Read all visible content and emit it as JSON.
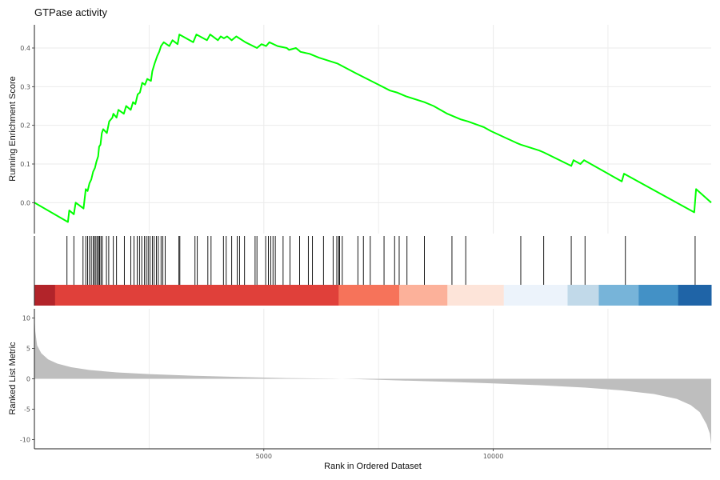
{
  "chart_data": {
    "type": "line",
    "title": "GTPase activity",
    "xlabel": "Rank in Ordered Dataset",
    "x_ticks": [
      5000,
      10000
    ],
    "xlim": [
      0,
      14750
    ],
    "grid": "vertical",
    "panels": {
      "running_score": {
        "ylabel": "Running Enrichment Score",
        "ylim": [
          -0.08,
          0.46
        ],
        "y_ticks": [
          0.0,
          0.1,
          0.2,
          0.3,
          0.4
        ],
        "line_color": "#00ff00",
        "points": [
          [
            0,
            0.0
          ],
          [
            730,
            -0.05
          ],
          [
            760,
            -0.02
          ],
          [
            860,
            -0.03
          ],
          [
            900,
            0.0
          ],
          [
            1070,
            -0.015
          ],
          [
            1120,
            0.035
          ],
          [
            1160,
            0.03
          ],
          [
            1200,
            0.05
          ],
          [
            1240,
            0.06
          ],
          [
            1280,
            0.08
          ],
          [
            1320,
            0.09
          ],
          [
            1350,
            0.105
          ],
          [
            1390,
            0.12
          ],
          [
            1410,
            0.145
          ],
          [
            1440,
            0.15
          ],
          [
            1470,
            0.18
          ],
          [
            1500,
            0.19
          ],
          [
            1580,
            0.18
          ],
          [
            1630,
            0.21
          ],
          [
            1700,
            0.22
          ],
          [
            1720,
            0.23
          ],
          [
            1790,
            0.22
          ],
          [
            1830,
            0.24
          ],
          [
            1950,
            0.23
          ],
          [
            2000,
            0.25
          ],
          [
            2100,
            0.24
          ],
          [
            2150,
            0.26
          ],
          [
            2200,
            0.255
          ],
          [
            2250,
            0.28
          ],
          [
            2300,
            0.285
          ],
          [
            2350,
            0.31
          ],
          [
            2410,
            0.305
          ],
          [
            2460,
            0.32
          ],
          [
            2540,
            0.315
          ],
          [
            2570,
            0.34
          ],
          [
            2620,
            0.36
          ],
          [
            2680,
            0.38
          ],
          [
            2720,
            0.39
          ],
          [
            2760,
            0.405
          ],
          [
            2820,
            0.415
          ],
          [
            2940,
            0.405
          ],
          [
            3010,
            0.42
          ],
          [
            3120,
            0.41
          ],
          [
            3160,
            0.435
          ],
          [
            3460,
            0.415
          ],
          [
            3530,
            0.435
          ],
          [
            3760,
            0.42
          ],
          [
            3830,
            0.435
          ],
          [
            4000,
            0.42
          ],
          [
            4060,
            0.43
          ],
          [
            4130,
            0.425
          ],
          [
            4200,
            0.43
          ],
          [
            4300,
            0.42
          ],
          [
            4400,
            0.43
          ],
          [
            4600,
            0.415
          ],
          [
            4850,
            0.4
          ],
          [
            4950,
            0.41
          ],
          [
            5050,
            0.405
          ],
          [
            5120,
            0.415
          ],
          [
            5300,
            0.405
          ],
          [
            5500,
            0.4
          ],
          [
            5550,
            0.395
          ],
          [
            5700,
            0.4
          ],
          [
            5800,
            0.39
          ],
          [
            6000,
            0.385
          ],
          [
            6200,
            0.375
          ],
          [
            6600,
            0.36
          ],
          [
            7000,
            0.335
          ],
          [
            7500,
            0.305
          ],
          [
            7750,
            0.29
          ],
          [
            7900,
            0.285
          ],
          [
            8100,
            0.275
          ],
          [
            8500,
            0.26
          ],
          [
            8700,
            0.25
          ],
          [
            9000,
            0.23
          ],
          [
            9300,
            0.215
          ],
          [
            9450,
            0.21
          ],
          [
            9800,
            0.195
          ],
          [
            9950,
            0.185
          ],
          [
            10500,
            0.155
          ],
          [
            10600,
            0.15
          ],
          [
            11000,
            0.135
          ],
          [
            11100,
            0.13
          ],
          [
            11700,
            0.095
          ],
          [
            11750,
            0.11
          ],
          [
            11900,
            0.1
          ],
          [
            11980,
            0.11
          ],
          [
            12800,
            0.055
          ],
          [
            12850,
            0.075
          ],
          [
            14380,
            -0.025
          ],
          [
            14420,
            0.035
          ],
          [
            14750,
            0.0
          ]
        ]
      },
      "hits": {
        "positions": [
          710,
          860,
          1060,
          1120,
          1160,
          1200,
          1240,
          1280,
          1310,
          1340,
          1370,
          1400,
          1420,
          1450,
          1480,
          1570,
          1620,
          1720,
          1790,
          1960,
          2100,
          2170,
          2240,
          2290,
          2340,
          2400,
          2440,
          2480,
          2520,
          2570,
          2610,
          2660,
          2700,
          2760,
          2800,
          2850,
          3150,
          3170,
          3500,
          3550,
          3780,
          3850,
          4120,
          4180,
          4300,
          4420,
          4470,
          4580,
          4810,
          4850,
          5040,
          5100,
          5150,
          5200,
          5250,
          5420,
          5570,
          5780,
          5970,
          6060,
          6300,
          6510,
          6590,
          6630,
          6650,
          6710,
          7050,
          7170,
          7320,
          7620,
          7850,
          7950,
          8120,
          8500,
          9100,
          9400,
          10600,
          11100,
          11700,
          12000,
          12880,
          14400
        ]
      },
      "color_band": {
        "segments": [
          {
            "start": 0,
            "end": 450,
            "color": "#b2242a"
          },
          {
            "start": 450,
            "end": 6630,
            "color": "#e0403a"
          },
          {
            "start": 6630,
            "end": 7950,
            "color": "#f6735a"
          },
          {
            "start": 7950,
            "end": 9000,
            "color": "#fcb19a"
          },
          {
            "start": 9000,
            "end": 10230,
            "color": "#fde4d9"
          },
          {
            "start": 10230,
            "end": 11620,
            "color": "#ecf3fb"
          },
          {
            "start": 11620,
            "end": 12300,
            "color": "#c1d9e9"
          },
          {
            "start": 12300,
            "end": 13170,
            "color": "#77b4d9"
          },
          {
            "start": 13170,
            "end": 14030,
            "color": "#4391c6"
          },
          {
            "start": 14030,
            "end": 14750,
            "color": "#1f64a7"
          }
        ]
      },
      "ranked_metric": {
        "ylabel": "Ranked List Metric",
        "ylim": [
          -11.5,
          11.5
        ],
        "y_ticks": [
          -10,
          -5,
          0,
          5,
          10
        ],
        "fill_color": "#bebebe",
        "points": [
          [
            0,
            10.5
          ],
          [
            20,
            7.8
          ],
          [
            60,
            5.5
          ],
          [
            150,
            4.2
          ],
          [
            300,
            3.2
          ],
          [
            500,
            2.5
          ],
          [
            800,
            1.9
          ],
          [
            1200,
            1.45
          ],
          [
            1800,
            1.05
          ],
          [
            2500,
            0.78
          ],
          [
            3500,
            0.5
          ],
          [
            4500,
            0.3
          ],
          [
            5500,
            0.12
          ],
          [
            6500,
            0.02
          ],
          [
            7000,
            -0.05
          ],
          [
            8000,
            -0.28
          ],
          [
            9000,
            -0.5
          ],
          [
            10000,
            -0.75
          ],
          [
            11000,
            -1.05
          ],
          [
            12000,
            -1.45
          ],
          [
            12800,
            -1.9
          ],
          [
            13500,
            -2.5
          ],
          [
            14000,
            -3.3
          ],
          [
            14300,
            -4.3
          ],
          [
            14500,
            -5.5
          ],
          [
            14650,
            -7.5
          ],
          [
            14720,
            -9.0
          ],
          [
            14750,
            -10.8
          ]
        ]
      }
    }
  }
}
